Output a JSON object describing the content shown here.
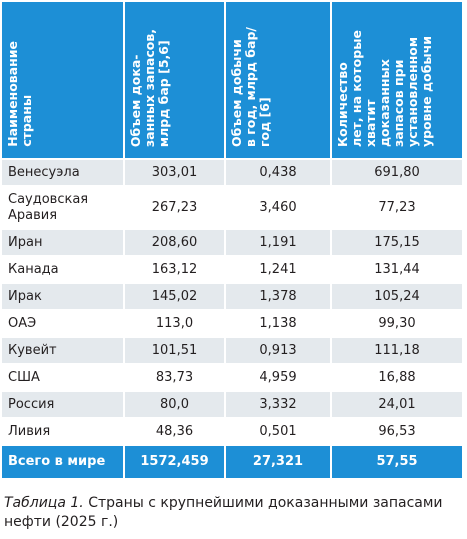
{
  "table": {
    "columns": [
      "Наименование\nстраны",
      "Объем дока-\nзанных запасов,\nмлрд бар [5,6]",
      "Объем добычи\nв год, млрд бар/\nгод [6]",
      "Количество\nлет, на которые\nхватит\nдоказанных\nзапасов при\nустановленном\nуровне добычи"
    ],
    "rows": [
      [
        "Венесуэла",
        "303,01",
        "0,438",
        "691,80"
      ],
      [
        "Саудовская\nАравия",
        "267,23",
        "3,460",
        "77,23"
      ],
      [
        "Иран",
        "208,60",
        "1,191",
        "175,15"
      ],
      [
        "Канада",
        "163,12",
        "1,241",
        "131,44"
      ],
      [
        "Ирак",
        "145,02",
        "1,378",
        "105,24"
      ],
      [
        "ОАЭ",
        "113,0",
        "1,138",
        "99,30"
      ],
      [
        "Кувейт",
        "101,51",
        "0,913",
        "111,18"
      ],
      [
        "США",
        "83,73",
        "4,959",
        "16,88"
      ],
      [
        "Россия",
        "80,0",
        "3,332",
        "24,01"
      ],
      [
        "Ливия",
        "48,36",
        "0,501",
        "96,53"
      ]
    ],
    "total": [
      "Всего в мире",
      "1572,459",
      "27,321",
      "57,55"
    ]
  },
  "caption": {
    "label": "Таблица 1.",
    "text": "Страны с крупнейшими доказанными запасами нефти (2025 г.)"
  }
}
